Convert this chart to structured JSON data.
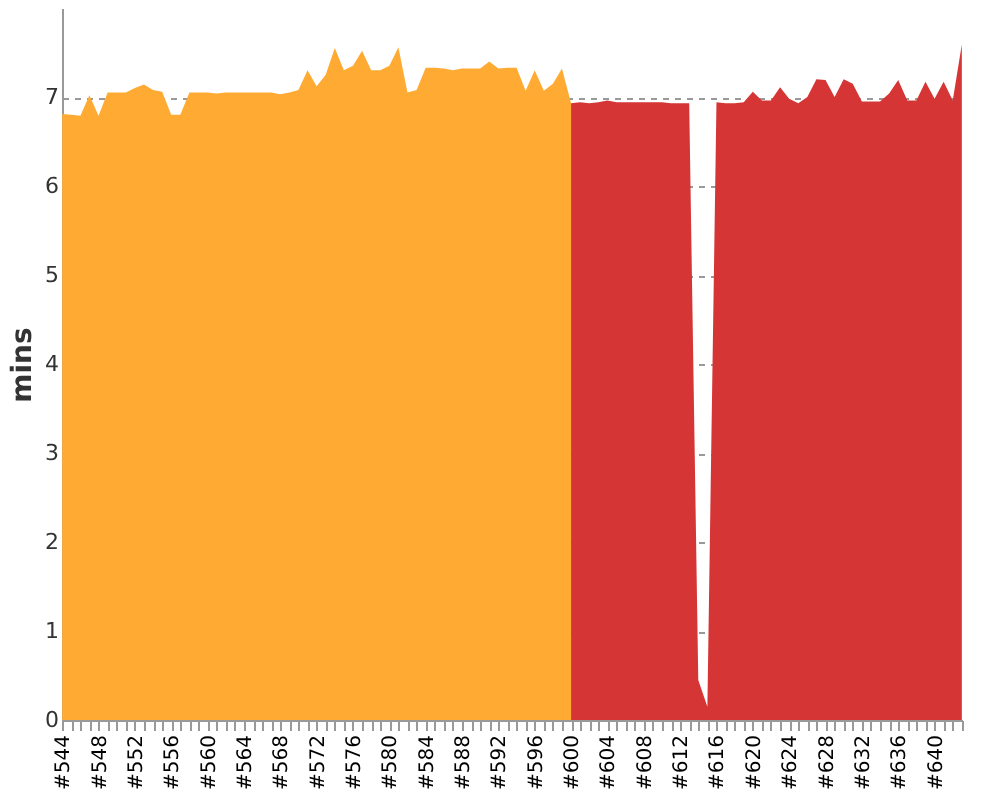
{
  "chart_data": {
    "type": "area",
    "ylabel": "mins",
    "categories": [
      "#544",
      null,
      null,
      null,
      "#548",
      null,
      null,
      null,
      "#552",
      null,
      null,
      null,
      "#556",
      null,
      null,
      null,
      "#560",
      null,
      null,
      null,
      "#564",
      null,
      null,
      null,
      "#568",
      null,
      null,
      null,
      "#572",
      null,
      null,
      null,
      "#576",
      null,
      null,
      null,
      "#580",
      null,
      null,
      null,
      "#584",
      null,
      null,
      null,
      "#588",
      null,
      null,
      null,
      "#592",
      null,
      null,
      null,
      "#596",
      null,
      null,
      null,
      "#600",
      null,
      null,
      null,
      "#604",
      null,
      null,
      null,
      "#608",
      null,
      null,
      null,
      "#612",
      null,
      null,
      null,
      "#616",
      null,
      null,
      null,
      "#620",
      null,
      null,
      null,
      "#624",
      null,
      null,
      null,
      "#628",
      null,
      null,
      null,
      "#632",
      null,
      null,
      null,
      "#636",
      null,
      null,
      null,
      "#640",
      null,
      null,
      null
    ],
    "series": [
      {
        "color": "#ffab33",
        "values": [
          6.81,
          6.8,
          6.79,
          7.02,
          6.79,
          7.05,
          7.05,
          7.05,
          7.1,
          7.14,
          7.08,
          7.06,
          6.8,
          6.8,
          7.05,
          7.05,
          7.05,
          7.04,
          7.05,
          7.05,
          7.05,
          7.05,
          7.05,
          7.05,
          7.03,
          7.05,
          7.08,
          7.3,
          7.12,
          7.25,
          7.55,
          7.3,
          7.35,
          7.52,
          7.3,
          7.3,
          7.35,
          7.56,
          7.05,
          7.08,
          7.33,
          7.33,
          7.32,
          7.3,
          7.32,
          7.32,
          7.32,
          7.4,
          7.32,
          7.33,
          7.33,
          7.07,
          7.3,
          7.07,
          7.15,
          7.32,
          6.93,
          null,
          null,
          null,
          null,
          null,
          null,
          null,
          null,
          null,
          null,
          null,
          null,
          null,
          null,
          null,
          null,
          null,
          null,
          null,
          null,
          null,
          null,
          null,
          null,
          null,
          null,
          null,
          null,
          null,
          null,
          null,
          null,
          null,
          null,
          null,
          null,
          null,
          null,
          null,
          null,
          null,
          null,
          null
        ]
      },
      {
        "color": "#d63535",
        "values": [
          null,
          null,
          null,
          null,
          null,
          null,
          null,
          null,
          null,
          null,
          null,
          null,
          null,
          null,
          null,
          null,
          null,
          null,
          null,
          null,
          null,
          null,
          null,
          null,
          null,
          null,
          null,
          null,
          null,
          null,
          null,
          null,
          null,
          null,
          null,
          null,
          null,
          null,
          null,
          null,
          null,
          null,
          null,
          null,
          null,
          null,
          null,
          null,
          null,
          null,
          null,
          null,
          null,
          null,
          null,
          null,
          6.93,
          6.94,
          6.93,
          6.94,
          6.96,
          6.94,
          6.94,
          6.94,
          6.94,
          6.94,
          6.94,
          6.93,
          6.93,
          6.93,
          0.45,
          0.15,
          6.94,
          6.93,
          6.93,
          6.94,
          7.06,
          6.96,
          6.96,
          7.11,
          6.98,
          6.93,
          7.0,
          7.2,
          7.19,
          7.0,
          7.2,
          7.15,
          6.95,
          6.95,
          6.95,
          7.04,
          7.19,
          6.96,
          6.96,
          7.17,
          6.98,
          7.17,
          6.96,
          7.59
        ]
      }
    ],
    "ylim": [
      0,
      8
    ],
    "yticks": [
      0,
      1,
      2,
      3,
      4,
      5,
      6,
      7
    ],
    "grid": "y"
  }
}
